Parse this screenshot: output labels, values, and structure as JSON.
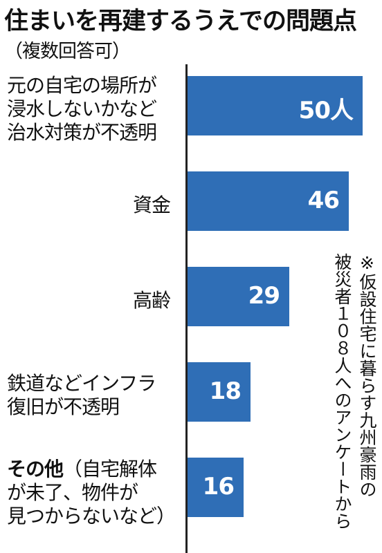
{
  "header": {
    "title": "住まいを再建するうえでの問題点",
    "subtitle": "（複数回答可）"
  },
  "note": {
    "lines": [
      "※仮設住宅に暮らす九州豪雨の",
      "被災者１０８人へのアンケートから"
    ]
  },
  "chart_data": {
    "type": "bar",
    "orientation": "horizontal",
    "title": "住まいを再建するうえでの問題点",
    "subtitle": "（複数回答可）",
    "color": "#2f6eb6",
    "categories": [
      "元の自宅の場所が浸水しないかなど治水対策が不透明",
      "資金",
      "高齢",
      "鉄道などインフラ復旧が不透明",
      "その他（自宅解体が未了、物件が見つからないなど）"
    ],
    "category_lines": [
      [
        "元の自宅の場所が",
        "浸水しないかなど",
        "治水対策が不透明"
      ],
      [
        "資金"
      ],
      [
        "高齢"
      ],
      [
        "鉄道などインフラ",
        "復旧が不透明"
      ],
      [
        "その他（自宅解体",
        "が未了、物件が",
        "見つからないなど）"
      ]
    ],
    "values": [
      50,
      46,
      29,
      18,
      16
    ],
    "value_labels": [
      "50人",
      "46",
      "29",
      "18",
      "16"
    ],
    "unit": "人"
  }
}
